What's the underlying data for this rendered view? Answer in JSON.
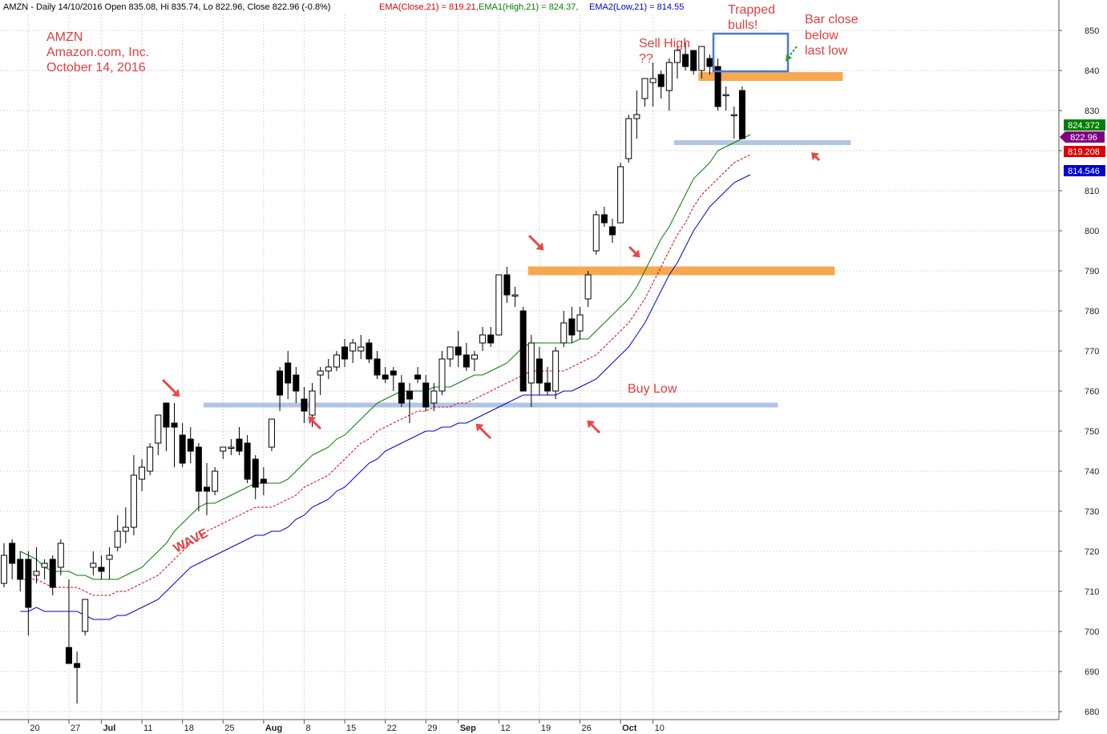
{
  "header": {
    "symbol_info": "AMZN - Daily 14/10/2016 Open 835.08, Hi 835.74, Lo 822.96, Close 822.96 (-0.8%)",
    "ema_close": "EMA(Close,21) = 819.21,",
    "ema_high": "EMA1(High,21) = 824.37,",
    "ema_low": "EMA2(Low,21) = 814.55"
  },
  "title_block": {
    "ticker": "AMZN",
    "company": "Amazon.com, Inc.",
    "date": "October 14, 2016"
  },
  "annotations": {
    "sell_high": "Sell High",
    "sell_high_q": "??",
    "trapped_1": "Trapped",
    "trapped_2": "bulls!",
    "bar_close_1": "Bar close",
    "bar_close_2": "below",
    "bar_close_3": "last low",
    "buy_low": "Buy Low",
    "wave": "WAVE"
  },
  "price_tags": {
    "ema_high": "824.372",
    "close": "822.96",
    "ema_close": "819.208",
    "ema_low": "814.546"
  },
  "colors": {
    "ema_high": "#008000",
    "ema_close": "#dd0000",
    "ema_low": "#0000cc",
    "close_tag": "#800080",
    "support_line": "#a9bfe0",
    "resistance_line": "#f7a040",
    "annotation": "#e04040",
    "box": "#4a7cc8"
  },
  "chart_data": {
    "type": "candlestick",
    "symbol": "AMZN",
    "period": "Daily",
    "ylim": [
      678,
      854
    ],
    "y_ticks": [
      680,
      690,
      700,
      710,
      720,
      730,
      740,
      750,
      760,
      770,
      780,
      790,
      800,
      810,
      820,
      830,
      840,
      850
    ],
    "x_ticks": [
      "20",
      "27",
      "Jul",
      "11",
      "18",
      "25",
      "Aug",
      "8",
      "15",
      "22",
      "29",
      "Sep",
      "12",
      "19",
      "26",
      "Oct",
      "10"
    ],
    "x_tick_bar_index": [
      3,
      8,
      12,
      17,
      22,
      27,
      32,
      37,
      42,
      47,
      52,
      56,
      61,
      66,
      71,
      76,
      80
    ],
    "candles": [
      {
        "o": 712,
        "h": 722,
        "l": 711,
        "c": 719
      },
      {
        "o": 722,
        "h": 723,
        "l": 713,
        "c": 717
      },
      {
        "o": 718,
        "h": 720,
        "l": 710,
        "c": 713
      },
      {
        "o": 718,
        "h": 720,
        "l": 699,
        "c": 706
      },
      {
        "o": 714,
        "h": 721,
        "l": 712,
        "c": 715
      },
      {
        "o": 716,
        "h": 718,
        "l": 713,
        "c": 717
      },
      {
        "o": 718,
        "h": 719,
        "l": 709,
        "c": 711
      },
      {
        "o": 716,
        "h": 723,
        "l": 714,
        "c": 722
      },
      {
        "o": 696,
        "h": 713,
        "l": 692,
        "c": 692
      },
      {
        "o": 692,
        "h": 695,
        "l": 682,
        "c": 691
      },
      {
        "o": 700,
        "h": 708,
        "l": 699,
        "c": 708
      },
      {
        "o": 716,
        "h": 720,
        "l": 714,
        "c": 717
      },
      {
        "o": 716,
        "h": 719,
        "l": 713,
        "c": 715
      },
      {
        "o": 718,
        "h": 721,
        "l": 713,
        "c": 719
      },
      {
        "o": 721,
        "h": 729,
        "l": 720,
        "c": 725
      },
      {
        "o": 725,
        "h": 731,
        "l": 722,
        "c": 726
      },
      {
        "o": 726,
        "h": 744,
        "l": 724,
        "c": 739
      },
      {
        "o": 738,
        "h": 743,
        "l": 735,
        "c": 741
      },
      {
        "o": 740,
        "h": 747,
        "l": 739,
        "c": 746
      },
      {
        "o": 747,
        "h": 754,
        "l": 744,
        "c": 754
      },
      {
        "o": 757,
        "h": 757,
        "l": 745,
        "c": 751
      },
      {
        "o": 752,
        "h": 757,
        "l": 741,
        "c": 751
      },
      {
        "o": 749,
        "h": 752,
        "l": 741,
        "c": 742
      },
      {
        "o": 748,
        "h": 751,
        "l": 742,
        "c": 745
      },
      {
        "o": 746,
        "h": 747,
        "l": 730,
        "c": 735
      },
      {
        "o": 736,
        "h": 742,
        "l": 729,
        "c": 735
      },
      {
        "o": 735,
        "h": 741,
        "l": 734,
        "c": 740
      },
      {
        "o": 745,
        "h": 746,
        "l": 743,
        "c": 746
      },
      {
        "o": 746,
        "h": 748,
        "l": 744,
        "c": 746
      },
      {
        "o": 748,
        "h": 751,
        "l": 744,
        "c": 745
      },
      {
        "o": 747,
        "h": 749,
        "l": 737,
        "c": 738
      },
      {
        "o": 743,
        "h": 744,
        "l": 733,
        "c": 736
      },
      {
        "o": 738,
        "h": 741,
        "l": 734,
        "c": 737
      },
      {
        "o": 746,
        "h": 753,
        "l": 745,
        "c": 753
      },
      {
        "o": 765,
        "h": 766,
        "l": 755,
        "c": 759
      },
      {
        "o": 767,
        "h": 770,
        "l": 758,
        "c": 762
      },
      {
        "o": 764,
        "h": 766,
        "l": 757,
        "c": 760
      },
      {
        "o": 758,
        "h": 761,
        "l": 752,
        "c": 755
      },
      {
        "o": 754,
        "h": 762,
        "l": 751,
        "c": 760
      },
      {
        "o": 764,
        "h": 766,
        "l": 759,
        "c": 765
      },
      {
        "o": 765,
        "h": 768,
        "l": 763,
        "c": 766
      },
      {
        "o": 766,
        "h": 770,
        "l": 765,
        "c": 769
      },
      {
        "o": 771,
        "h": 773,
        "l": 766,
        "c": 768
      },
      {
        "o": 770,
        "h": 773,
        "l": 767,
        "c": 772
      },
      {
        "o": 770,
        "h": 774,
        "l": 768,
        "c": 771
      },
      {
        "o": 772,
        "h": 773,
        "l": 767,
        "c": 768
      },
      {
        "o": 768,
        "h": 770,
        "l": 763,
        "c": 764
      },
      {
        "o": 764,
        "h": 766,
        "l": 762,
        "c": 763
      },
      {
        "o": 765,
        "h": 766,
        "l": 760,
        "c": 764
      },
      {
        "o": 762,
        "h": 764,
        "l": 756,
        "c": 757
      },
      {
        "o": 760,
        "h": 762,
        "l": 752,
        "c": 758
      },
      {
        "o": 764,
        "h": 766,
        "l": 762,
        "c": 763
      },
      {
        "o": 762,
        "h": 764,
        "l": 755,
        "c": 756
      },
      {
        "o": 757,
        "h": 762,
        "l": 755,
        "c": 760
      },
      {
        "o": 760,
        "h": 770,
        "l": 759,
        "c": 768
      },
      {
        "o": 768,
        "h": 771,
        "l": 766,
        "c": 771
      },
      {
        "o": 771,
        "h": 775,
        "l": 766,
        "c": 769
      },
      {
        "o": 769,
        "h": 772,
        "l": 765,
        "c": 766
      },
      {
        "o": 768,
        "h": 770,
        "l": 765,
        "c": 769
      },
      {
        "o": 772,
        "h": 776,
        "l": 770,
        "c": 774
      },
      {
        "o": 774,
        "h": 776,
        "l": 771,
        "c": 772
      },
      {
        "o": 774,
        "h": 789,
        "l": 774,
        "c": 789
      },
      {
        "o": 789,
        "h": 791,
        "l": 782,
        "c": 784
      },
      {
        "o": 784,
        "h": 786,
        "l": 781,
        "c": 784
      },
      {
        "o": 780,
        "h": 781,
        "l": 760,
        "c": 760
      },
      {
        "o": 762,
        "h": 774,
        "l": 756,
        "c": 772
      },
      {
        "o": 768,
        "h": 771,
        "l": 759,
        "c": 762
      },
      {
        "o": 762,
        "h": 766,
        "l": 759,
        "c": 760
      },
      {
        "o": 760,
        "h": 771,
        "l": 758,
        "c": 770
      },
      {
        "o": 772,
        "h": 780,
        "l": 771,
        "c": 777
      },
      {
        "o": 778,
        "h": 781,
        "l": 772,
        "c": 774
      },
      {
        "o": 775,
        "h": 781,
        "l": 773,
        "c": 779
      },
      {
        "o": 783,
        "h": 790,
        "l": 781,
        "c": 789
      },
      {
        "o": 795,
        "h": 805,
        "l": 794,
        "c": 804
      },
      {
        "o": 804,
        "h": 806,
        "l": 801,
        "c": 802
      },
      {
        "o": 801,
        "h": 803,
        "l": 797,
        "c": 799
      },
      {
        "o": 802,
        "h": 817,
        "l": 802,
        "c": 816
      },
      {
        "o": 818,
        "h": 829,
        "l": 817,
        "c": 828
      },
      {
        "o": 828,
        "h": 835,
        "l": 823,
        "c": 829
      },
      {
        "o": 833,
        "h": 838,
        "l": 831,
        "c": 838
      },
      {
        "o": 837,
        "h": 842,
        "l": 831,
        "c": 838
      },
      {
        "o": 839,
        "h": 840,
        "l": 833,
        "c": 836
      },
      {
        "o": 835,
        "h": 843,
        "l": 830,
        "c": 842
      },
      {
        "o": 842,
        "h": 846,
        "l": 838,
        "c": 845
      },
      {
        "o": 844,
        "h": 847,
        "l": 840,
        "c": 841
      },
      {
        "o": 845,
        "h": 845,
        "l": 839,
        "c": 840
      },
      {
        "o": 840,
        "h": 846,
        "l": 838,
        "c": 846
      },
      {
        "o": 843,
        "h": 844,
        "l": 839,
        "c": 841
      },
      {
        "o": 841,
        "h": 843,
        "l": 830,
        "c": 831
      },
      {
        "o": 834,
        "h": 836,
        "l": 830,
        "c": 834
      },
      {
        "o": 829,
        "h": 831,
        "l": 823,
        "c": 829
      },
      {
        "o": 835,
        "h": 836,
        "l": 823,
        "c": 823
      }
    ],
    "series": [
      {
        "name": "EMA1(High,21)",
        "values": [
          720,
          719,
          718,
          716,
          715,
          715,
          715,
          714,
          714,
          713,
          713,
          713,
          713,
          714,
          715,
          716,
          718,
          720,
          722,
          725,
          727,
          729,
          731,
          732,
          732,
          733,
          734,
          735,
          736,
          737,
          737,
          737,
          737,
          738,
          740,
          742,
          744,
          745,
          746,
          748,
          749,
          751,
          753,
          755,
          757,
          758,
          759,
          760,
          760,
          760,
          760,
          761,
          761,
          761,
          762,
          763,
          764,
          764,
          765,
          766,
          767,
          769,
          771,
          772,
          772,
          772,
          772,
          772,
          772,
          773,
          773,
          775,
          777,
          779,
          781,
          783,
          786,
          790,
          794,
          798,
          801,
          805,
          809,
          813,
          815,
          817,
          820,
          821,
          822,
          823,
          824
        ]
      },
      {
        "name": "EMA(Close,21)",
        "values": [
          713,
          713,
          713,
          712,
          711,
          711,
          711,
          711,
          710,
          709,
          709,
          709,
          710,
          710,
          711,
          712,
          713,
          714,
          716,
          718,
          720,
          722,
          723,
          725,
          726,
          727,
          728,
          729,
          730,
          731,
          731,
          731,
          732,
          733,
          734,
          736,
          737,
          738,
          739,
          741,
          743,
          745,
          747,
          748,
          750,
          751,
          752,
          753,
          754,
          755,
          755,
          756,
          756,
          756,
          757,
          757,
          758,
          759,
          760,
          761,
          762,
          763,
          764,
          765,
          765,
          765,
          765,
          765,
          766,
          767,
          768,
          769,
          771,
          773,
          775,
          777,
          780,
          783,
          787,
          791,
          795,
          799,
          802,
          806,
          809,
          811,
          813,
          815,
          817,
          818,
          819
        ]
      },
      {
        "name": "EMA2(Low,21)",
        "values": [
          705,
          705,
          706,
          705,
          705,
          705,
          705,
          705,
          704,
          703,
          703,
          703,
          704,
          704,
          705,
          706,
          707,
          708,
          710,
          712,
          714,
          716,
          717,
          718,
          719,
          720,
          721,
          722,
          723,
          724,
          724,
          725,
          725,
          726,
          728,
          729,
          731,
          732,
          733,
          735,
          736,
          738,
          740,
          742,
          743,
          745,
          746,
          747,
          748,
          749,
          750,
          750,
          751,
          751,
          752,
          752,
          753,
          754,
          755,
          756,
          757,
          758,
          759,
          759,
          759,
          759,
          759,
          760,
          760,
          761,
          762,
          763,
          765,
          767,
          769,
          771,
          774,
          777,
          781,
          785,
          789,
          792,
          796,
          800,
          803,
          806,
          808,
          810,
          812,
          813,
          814
        ]
      }
    ],
    "series_x_start_bar": 0,
    "series_x_offset": 2,
    "levels": [
      {
        "name": "support",
        "price": 756.5,
        "from_bar": 25,
        "to_bar": 95
      },
      {
        "name": "resistance",
        "price": 790,
        "from_bar": 65,
        "to_bar": 102
      },
      {
        "name": "support",
        "price": 822,
        "from_bar": 83,
        "to_bar": 104
      },
      {
        "name": "resistance",
        "price": 838.5,
        "from_bar": 86,
        "to_bar": 103
      }
    ]
  }
}
